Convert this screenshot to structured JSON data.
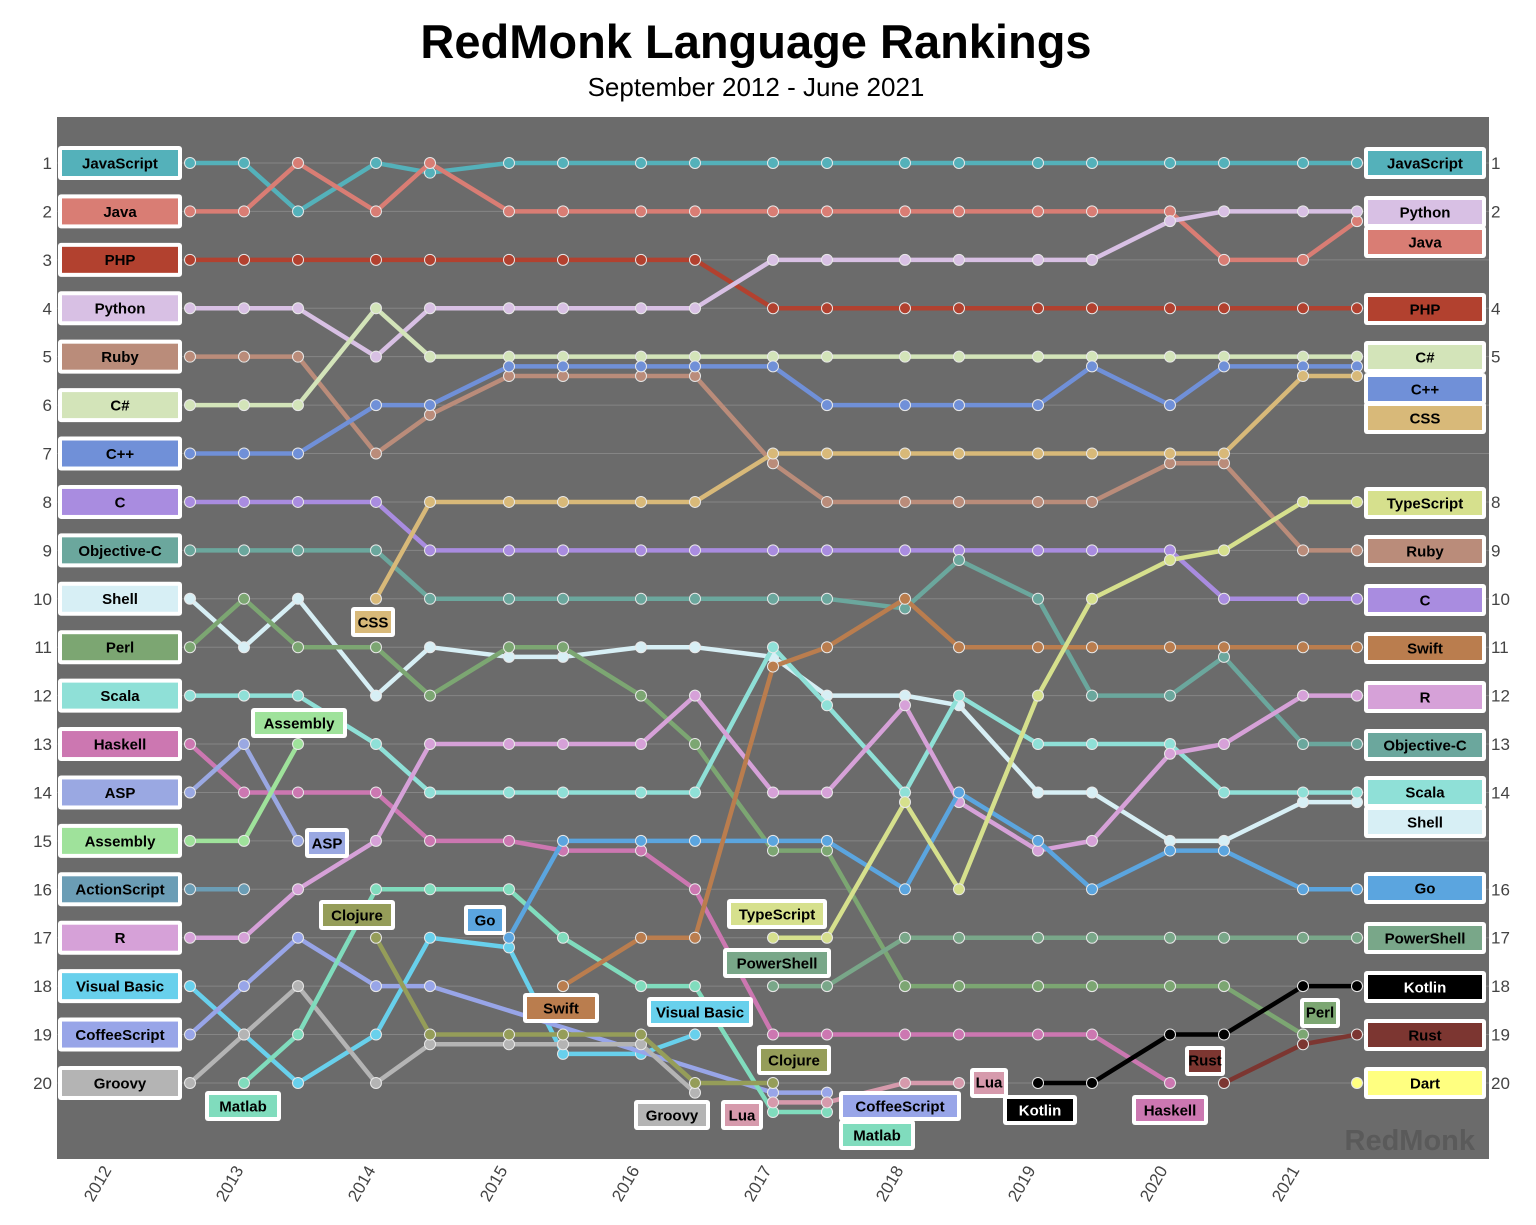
{
  "chart_data": {
    "type": "line",
    "title": "RedMonk Language Rankings",
    "subtitle": "September 2012 - June 2021",
    "x": [
      "2012-09",
      "2013-01",
      "2013-06",
      "2014-01",
      "2014-06",
      "2015-01",
      "2015-06",
      "2016-01",
      "2016-06",
      "2017-01",
      "2017-06",
      "2018-01",
      "2018-06",
      "2019-01",
      "2019-06",
      "2020-01",
      "2020-06",
      "2021-01",
      "2021-06"
    ],
    "x_tick_labels": [
      "2012",
      "2013",
      "2014",
      "2015",
      "2016",
      "2017",
      "2018",
      "2019",
      "2020",
      "2021"
    ],
    "y_tick_labels_left": [
      "1",
      "2",
      "3",
      "4",
      "5",
      "6",
      "7",
      "8",
      "9",
      "10",
      "11",
      "12",
      "13",
      "14",
      "15",
      "16",
      "17",
      "18",
      "19",
      "20"
    ],
    "y_tick_labels_right": [
      "1",
      "2",
      "4",
      "5",
      "8",
      "9",
      "10",
      "11",
      "12",
      "13",
      "14",
      "16",
      "17",
      "18",
      "19",
      "20"
    ],
    "ylim": [
      1,
      20
    ],
    "y_inverted": true,
    "grid": true,
    "background": "#6b6b6b",
    "watermark": "RedMonk",
    "series": [
      {
        "name": "JavaScript",
        "color": "#54b1ba",
        "values": [
          1,
          1,
          2,
          1,
          1.2,
          1,
          1,
          1,
          1,
          1,
          1,
          1,
          1,
          1,
          1,
          1,
          1,
          1,
          1
        ]
      },
      {
        "name": "Java",
        "color": "#d97d74",
        "values": [
          2,
          2,
          1,
          2,
          1,
          2,
          2,
          2,
          2,
          2,
          2,
          2,
          2,
          2,
          2,
          2,
          3,
          3,
          2.2
        ]
      },
      {
        "name": "PHP",
        "color": "#b2412f",
        "values": [
          3,
          3,
          3,
          3,
          3,
          3,
          3,
          3,
          3,
          4,
          4,
          4,
          4,
          4,
          4,
          4,
          4,
          4,
          4
        ]
      },
      {
        "name": "Python",
        "color": "#d8c0e4",
        "values": [
          4,
          4,
          4,
          5,
          4,
          4,
          4,
          4,
          4,
          3,
          3,
          3,
          3,
          3,
          3,
          2.2,
          2,
          2,
          2
        ]
      },
      {
        "name": "Ruby",
        "color": "#ba8c7a",
        "values": [
          5,
          5,
          5,
          7,
          6.2,
          5.4,
          5.4,
          5.4,
          5.4,
          7.2,
          8,
          8,
          8,
          8,
          8,
          7.2,
          7.2,
          9,
          9
        ]
      },
      {
        "name": "C#",
        "color": "#d3e4b9",
        "values": [
          6,
          6,
          6,
          4,
          5,
          5,
          5,
          5,
          5,
          5,
          5,
          5,
          5,
          5,
          5,
          5,
          5,
          5,
          5
        ]
      },
      {
        "name": "C++",
        "color": "#7090d8",
        "values": [
          7,
          7,
          7,
          6,
          6,
          5.2,
          5.2,
          5.2,
          5.2,
          5.2,
          6,
          6,
          6,
          6,
          5.2,
          6,
          5.2,
          5.2,
          5.2
        ]
      },
      {
        "name": "C",
        "color": "#a98ce0",
        "values": [
          8,
          8,
          8,
          8,
          9,
          9,
          9,
          9,
          9,
          9,
          9,
          9,
          9,
          9,
          9,
          9,
          10,
          10,
          10
        ]
      },
      {
        "name": "Objective-C",
        "color": "#6ba79d",
        "values": [
          9,
          9,
          9,
          9,
          10,
          10,
          10,
          10,
          10,
          10,
          10,
          10.2,
          9.2,
          10,
          12,
          12,
          11.2,
          13,
          13
        ]
      },
      {
        "name": "Shell",
        "color": "#d7eff5",
        "values": [
          10,
          11,
          10,
          12,
          11,
          11.2,
          11.2,
          11,
          11,
          11.2,
          12,
          12,
          12.2,
          14,
          14,
          15,
          15,
          14.2,
          14.2
        ]
      },
      {
        "name": "Perl",
        "color": "#7ca672",
        "values": [
          11,
          10,
          11,
          11,
          12,
          11,
          11,
          12,
          13,
          15.2,
          15.2,
          18,
          18,
          18,
          18,
          18,
          18,
          19,
          null
        ]
      },
      {
        "name": "Scala",
        "color": "#8fe0d7",
        "values": [
          12,
          12,
          12,
          13,
          14,
          14,
          14,
          14,
          14,
          11,
          12.2,
          14,
          12,
          13,
          13,
          13,
          14,
          14,
          14
        ]
      },
      {
        "name": "Haskell",
        "color": "#cc77b1",
        "values": [
          13,
          14,
          14,
          14,
          15,
          15,
          15.2,
          15.2,
          16,
          19,
          19,
          19,
          19,
          19,
          19,
          20,
          null,
          null,
          null
        ]
      },
      {
        "name": "ASP",
        "color": "#9aa8e2",
        "values": [
          14,
          13,
          15,
          null,
          null,
          null,
          null,
          null,
          null,
          null,
          null,
          null,
          null,
          null,
          null,
          null,
          null,
          null,
          null
        ]
      },
      {
        "name": "Assembly",
        "color": "#9fe29b",
        "values": [
          15,
          15,
          13,
          null,
          null,
          null,
          null,
          null,
          null,
          null,
          null,
          null,
          null,
          null,
          null,
          null,
          null,
          null,
          null
        ]
      },
      {
        "name": "ActionScript",
        "color": "#6b9db5",
        "values": [
          16,
          16,
          null,
          null,
          null,
          null,
          null,
          null,
          null,
          null,
          null,
          null,
          null,
          null,
          null,
          null,
          null,
          null,
          null
        ]
      },
      {
        "name": "R",
        "color": "#d6a1d8",
        "values": [
          17,
          17,
          16,
          15,
          13,
          13,
          13,
          13,
          12,
          14,
          14,
          12.2,
          14.2,
          15.2,
          15,
          13.2,
          13,
          12,
          12
        ]
      },
      {
        "name": "Visual Basic",
        "color": "#68d0ec",
        "values": [
          18,
          19,
          20,
          19,
          17,
          17.2,
          19.4,
          19.4,
          19,
          null,
          null,
          null,
          null,
          null,
          null,
          null,
          null,
          null,
          null
        ]
      },
      {
        "name": "CoffeeScript",
        "color": "#98a5e8",
        "values": [
          19,
          18,
          17,
          18,
          18,
          null,
          null,
          null,
          null,
          20.2,
          20.2,
          null,
          null,
          null,
          null,
          null,
          null,
          null,
          null
        ]
      },
      {
        "name": "Groovy",
        "color": "#b4b4b4",
        "values": [
          20,
          19,
          18,
          20,
          19.2,
          19.2,
          19.2,
          19.2,
          20.2,
          null,
          null,
          null,
          null,
          null,
          null,
          null,
          null,
          null,
          null
        ]
      },
      {
        "name": "Matlab",
        "color": "#80dcbd",
        "values": [
          null,
          20,
          19,
          16,
          16,
          16,
          17,
          18,
          18,
          20.6,
          20.6,
          null,
          null,
          null,
          null,
          null,
          null,
          null,
          null
        ]
      },
      {
        "name": "Clojure",
        "color": "#959d59",
        "values": [
          null,
          null,
          null,
          17,
          19,
          19,
          19,
          19,
          20,
          20,
          null,
          null,
          null,
          null,
          null,
          null,
          null,
          null,
          null
        ]
      },
      {
        "name": "CSS",
        "color": "#d8b979",
        "values": [
          null,
          null,
          null,
          10,
          8,
          8,
          8,
          8,
          8,
          7,
          7,
          7,
          7,
          7,
          7,
          7,
          7,
          5.4,
          5.4
        ]
      },
      {
        "name": "Go",
        "color": "#5ba5df",
        "values": [
          null,
          null,
          null,
          null,
          null,
          17,
          15,
          15,
          15,
          15,
          15,
          16,
          14,
          15,
          16,
          15.2,
          15.2,
          16,
          16
        ]
      },
      {
        "name": "Swift",
        "color": "#ba7d4e",
        "values": [
          null,
          null,
          null,
          null,
          null,
          null,
          18,
          17,
          17,
          11.4,
          11,
          10,
          11,
          11,
          11,
          11,
          11,
          11,
          11
        ]
      },
      {
        "name": "Lua",
        "color": "#d69aac",
        "values": [
          null,
          null,
          null,
          null,
          null,
          null,
          null,
          null,
          null,
          20.4,
          20.4,
          20,
          20,
          null,
          null,
          null,
          null,
          null,
          null
        ]
      },
      {
        "name": "TypeScript",
        "color": "#d6e08d",
        "values": [
          null,
          null,
          null,
          null,
          null,
          null,
          null,
          null,
          null,
          17,
          17,
          14.2,
          16,
          12,
          10,
          9.2,
          9,
          8,
          8
        ]
      },
      {
        "name": "PowerShell",
        "color": "#79a789",
        "values": [
          null,
          null,
          null,
          null,
          null,
          null,
          null,
          null,
          null,
          18,
          18,
          17,
          17,
          17,
          17,
          17,
          17,
          17,
          17
        ]
      },
      {
        "name": "Kotlin",
        "color": "#000000",
        "text_color": "#ffffff",
        "values": [
          null,
          null,
          null,
          null,
          null,
          null,
          null,
          null,
          null,
          null,
          null,
          null,
          null,
          20,
          20,
          19,
          19,
          18,
          18
        ]
      },
      {
        "name": "Rust",
        "color": "#7c3631",
        "values": [
          null,
          null,
          null,
          null,
          null,
          null,
          null,
          null,
          null,
          null,
          null,
          null,
          null,
          null,
          null,
          null,
          20,
          19.2,
          19
        ]
      },
      {
        "name": "Dart",
        "color": "#ffff80",
        "values": [
          null,
          null,
          null,
          null,
          null,
          null,
          null,
          null,
          null,
          null,
          null,
          null,
          null,
          null,
          null,
          null,
          null,
          null,
          20
        ]
      }
    ]
  }
}
